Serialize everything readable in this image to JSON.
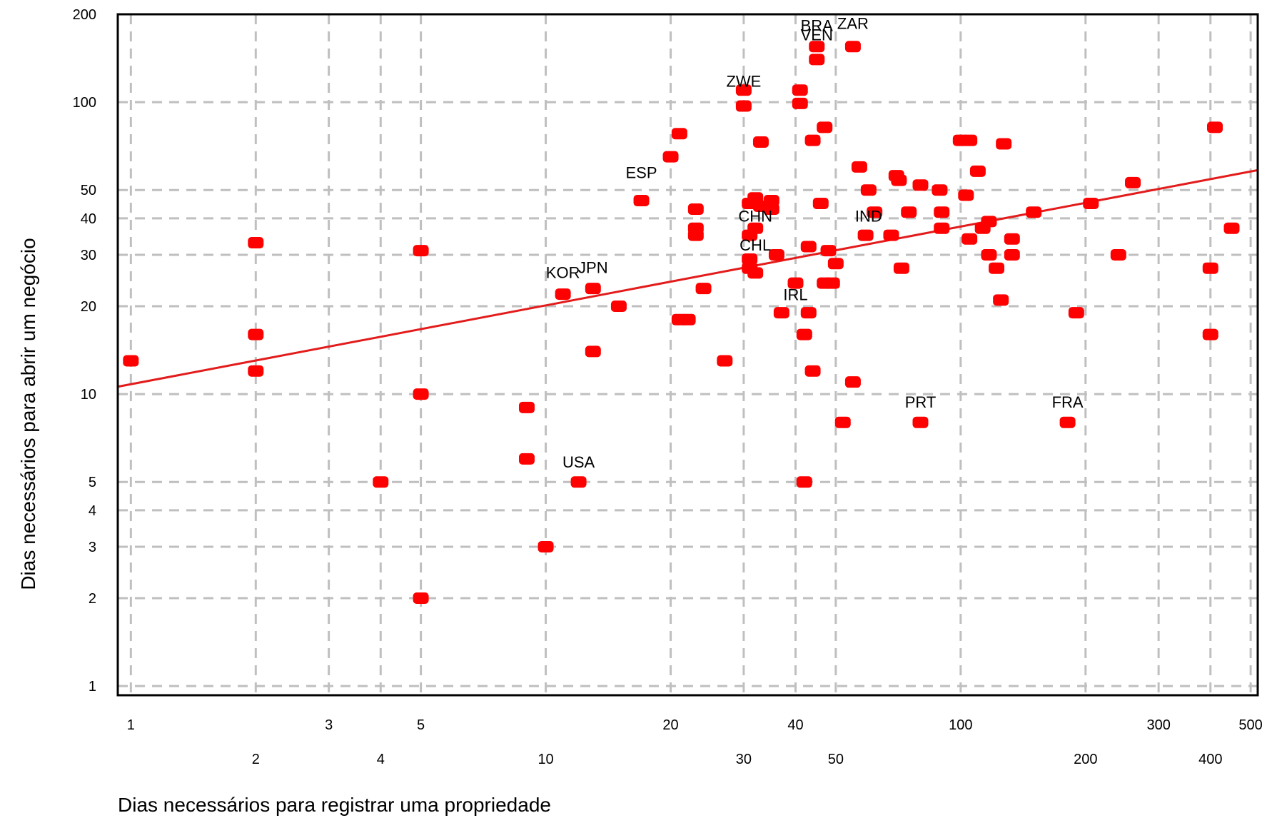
{
  "chart_data": {
    "type": "scatter",
    "title": "",
    "xlabel": "Dias necessários para registrar uma propriedade",
    "ylabel": "Dias necessários para abrir um negócio",
    "xscale": "log",
    "yscale": "log",
    "xlim": [
      0.93,
      520
    ],
    "ylim": [
      0.93,
      200
    ],
    "grid": true,
    "colors": {
      "point": "#ff0000",
      "trend": "#e31b1b",
      "grid": "#bfbfbf",
      "axis": "#000000"
    },
    "x_ticks_row1": [
      1,
      3,
      5,
      20,
      40,
      100,
      300,
      500
    ],
    "x_ticks_row2": [
      2,
      4,
      10,
      30,
      50,
      200,
      400
    ],
    "y_ticks": [
      1,
      2,
      3,
      4,
      5,
      10,
      20,
      30,
      40,
      50,
      100,
      200
    ],
    "trendline": {
      "x": [
        0.93,
        520
      ],
      "y": [
        10.6,
        58.5
      ]
    },
    "points": [
      {
        "x": 1,
        "y": 13
      },
      {
        "x": 2,
        "y": 33
      },
      {
        "x": 2,
        "y": 16
      },
      {
        "x": 2,
        "y": 12
      },
      {
        "x": 5,
        "y": 31
      },
      {
        "x": 5,
        "y": 10
      },
      {
        "x": 4,
        "y": 5
      },
      {
        "x": 5,
        "y": 2
      },
      {
        "x": 9,
        "y": 9
      },
      {
        "x": 9,
        "y": 6
      },
      {
        "x": 10,
        "y": 3
      },
      {
        "x": 11,
        "y": 22
      },
      {
        "x": 12,
        "y": 5
      },
      {
        "x": 13,
        "y": 23
      },
      {
        "x": 13,
        "y": 14
      },
      {
        "x": 15,
        "y": 20
      },
      {
        "x": 17,
        "y": 46
      },
      {
        "x": 20,
        "y": 65
      },
      {
        "x": 21,
        "y": 78
      },
      {
        "x": 21,
        "y": 18
      },
      {
        "x": 22,
        "y": 18
      },
      {
        "x": 23,
        "y": 43
      },
      {
        "x": 23,
        "y": 37
      },
      {
        "x": 23,
        "y": 35
      },
      {
        "x": 24,
        "y": 23
      },
      {
        "x": 27,
        "y": 13
      },
      {
        "x": 30,
        "y": 110
      },
      {
        "x": 30,
        "y": 97
      },
      {
        "x": 31,
        "y": 45
      },
      {
        "x": 31,
        "y": 35
      },
      {
        "x": 31,
        "y": 29
      },
      {
        "x": 31,
        "y": 27
      },
      {
        "x": 32,
        "y": 47
      },
      {
        "x": 32,
        "y": 37
      },
      {
        "x": 32,
        "y": 26
      },
      {
        "x": 33,
        "y": 73
      },
      {
        "x": 33,
        "y": 44
      },
      {
        "x": 35,
        "y": 46
      },
      {
        "x": 35,
        "y": 43
      },
      {
        "x": 36,
        "y": 30
      },
      {
        "x": 37,
        "y": 19
      },
      {
        "x": 40,
        "y": 24
      },
      {
        "x": 41,
        "y": 110
      },
      {
        "x": 41,
        "y": 99
      },
      {
        "x": 42,
        "y": 16
      },
      {
        "x": 42,
        "y": 5
      },
      {
        "x": 43,
        "y": 32
      },
      {
        "x": 43,
        "y": 19
      },
      {
        "x": 44,
        "y": 74
      },
      {
        "x": 44,
        "y": 12
      },
      {
        "x": 45,
        "y": 155
      },
      {
        "x": 45,
        "y": 140
      },
      {
        "x": 46,
        "y": 45
      },
      {
        "x": 47,
        "y": 82
      },
      {
        "x": 47,
        "y": 24
      },
      {
        "x": 48,
        "y": 31
      },
      {
        "x": 49,
        "y": 24
      },
      {
        "x": 50,
        "y": 28
      },
      {
        "x": 52,
        "y": 8
      },
      {
        "x": 55,
        "y": 155
      },
      {
        "x": 55,
        "y": 11
      },
      {
        "x": 57,
        "y": 60
      },
      {
        "x": 59,
        "y": 35
      },
      {
        "x": 60,
        "y": 50
      },
      {
        "x": 62,
        "y": 42
      },
      {
        "x": 68,
        "y": 35
      },
      {
        "x": 70,
        "y": 56
      },
      {
        "x": 71,
        "y": 54
      },
      {
        "x": 72,
        "y": 27
      },
      {
        "x": 75,
        "y": 42
      },
      {
        "x": 80,
        "y": 52
      },
      {
        "x": 80,
        "y": 8
      },
      {
        "x": 89,
        "y": 50
      },
      {
        "x": 90,
        "y": 42
      },
      {
        "x": 90,
        "y": 37
      },
      {
        "x": 100,
        "y": 74
      },
      {
        "x": 103,
        "y": 48
      },
      {
        "x": 105,
        "y": 74
      },
      {
        "x": 105,
        "y": 34
      },
      {
        "x": 110,
        "y": 58
      },
      {
        "x": 113,
        "y": 37
      },
      {
        "x": 117,
        "y": 30
      },
      {
        "x": 117,
        "y": 39
      },
      {
        "x": 122,
        "y": 27
      },
      {
        "x": 125,
        "y": 21
      },
      {
        "x": 127,
        "y": 72
      },
      {
        "x": 133,
        "y": 34
      },
      {
        "x": 133,
        "y": 30
      },
      {
        "x": 150,
        "y": 42
      },
      {
        "x": 181,
        "y": 8
      },
      {
        "x": 190,
        "y": 19
      },
      {
        "x": 206,
        "y": 45
      },
      {
        "x": 240,
        "y": 30
      },
      {
        "x": 260,
        "y": 53
      },
      {
        "x": 400,
        "y": 27
      },
      {
        "x": 400,
        "y": 16
      },
      {
        "x": 410,
        "y": 82
      },
      {
        "x": 450,
        "y": 37
      }
    ],
    "annotations": [
      {
        "text": "BRA",
        "x": 45,
        "y": 175
      },
      {
        "text": "ZAR",
        "x": 55,
        "y": 178
      },
      {
        "text": "VEN",
        "x": 45,
        "y": 163
      },
      {
        "text": "ZWE",
        "x": 30,
        "y": 113
      },
      {
        "text": "ESP",
        "x": 17,
        "y": 55
      },
      {
        "text": "CHN",
        "x": 32,
        "y": 39
      },
      {
        "text": "IND",
        "x": 60,
        "y": 39
      },
      {
        "text": "CHL",
        "x": 32,
        "y": 31
      },
      {
        "text": "KOR",
        "x": 11,
        "y": 25
      },
      {
        "text": "JPN",
        "x": 13,
        "y": 26
      },
      {
        "text": "IRL",
        "x": 40,
        "y": 21
      },
      {
        "text": "PRT",
        "x": 80,
        "y": 9
      },
      {
        "text": "FRA",
        "x": 181,
        "y": 9
      },
      {
        "text": "USA",
        "x": 12,
        "y": 5.6
      }
    ]
  }
}
